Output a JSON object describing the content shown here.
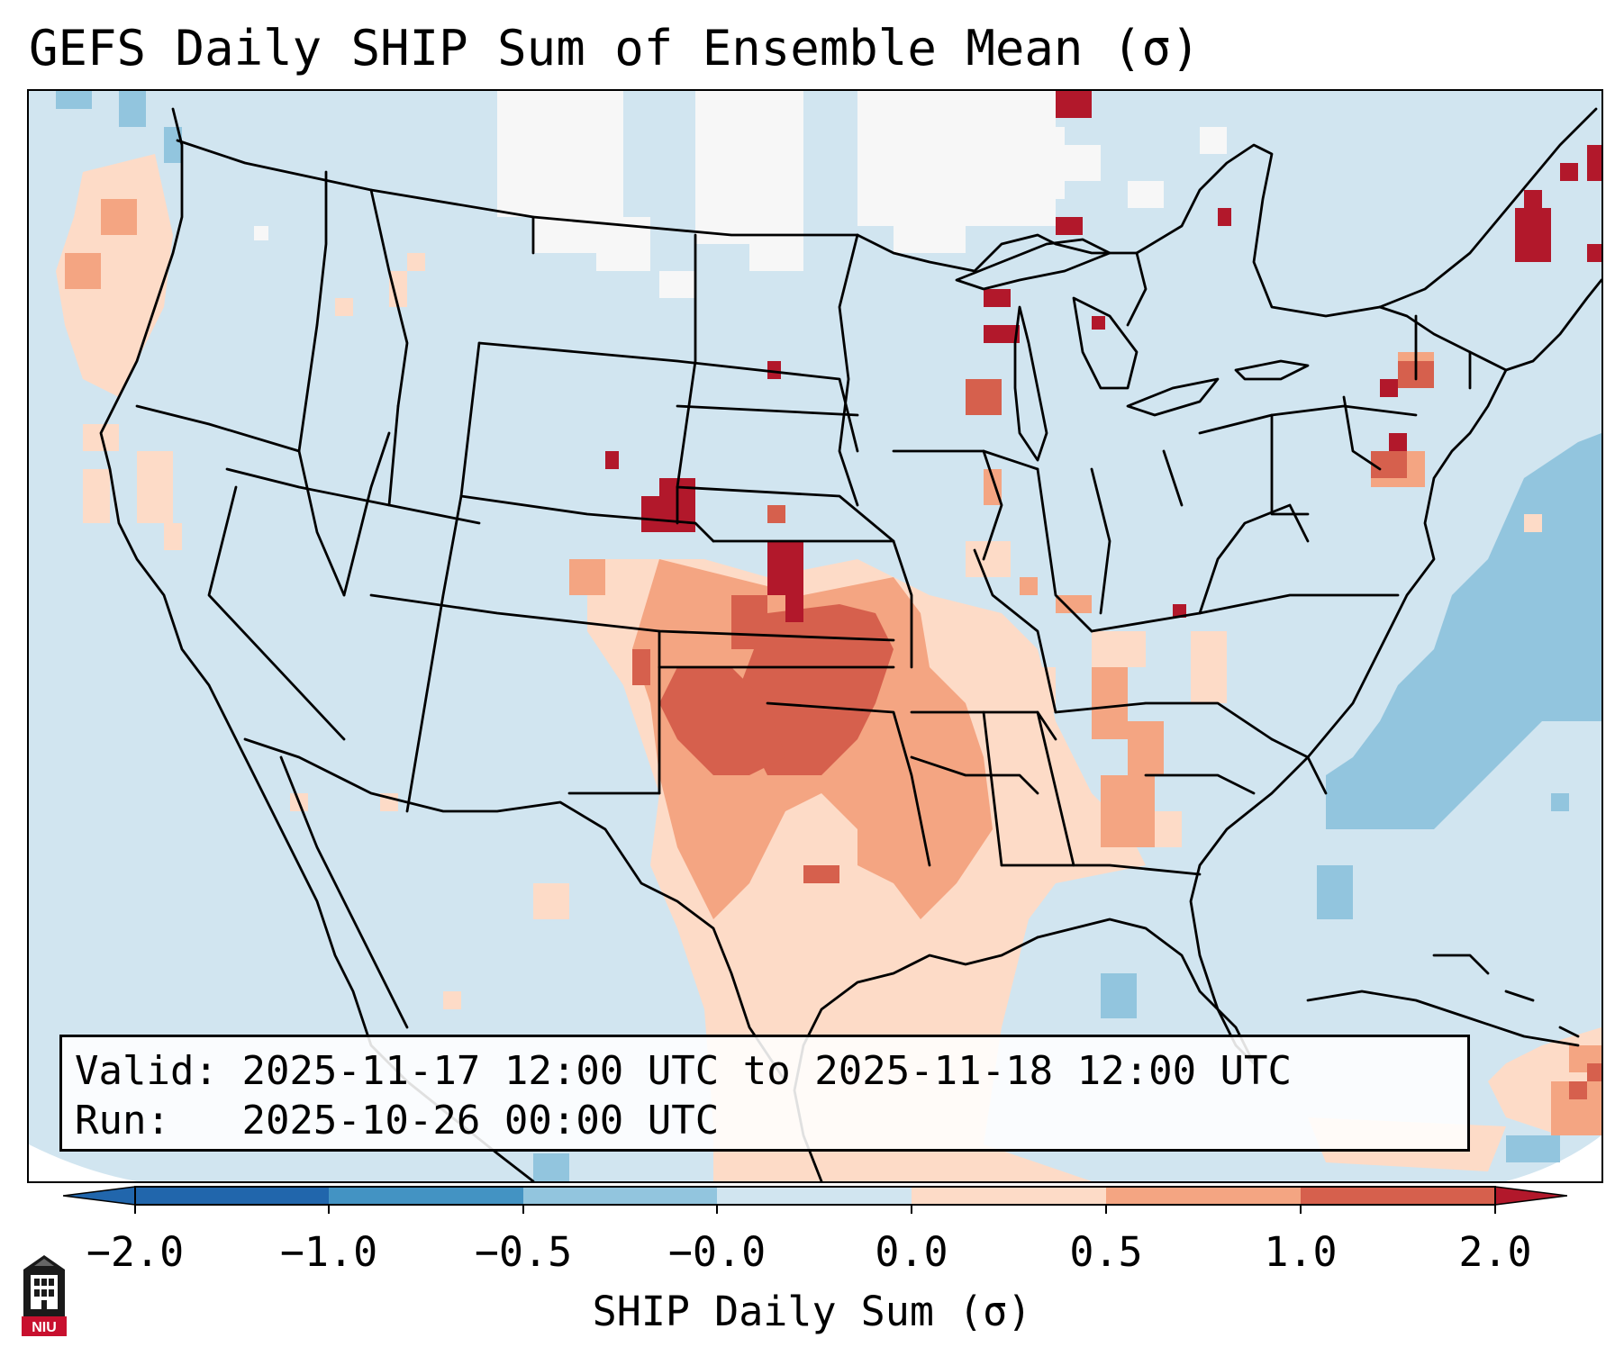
{
  "title": "GEFS Daily SHIP Sum of Ensemble Mean (σ)",
  "info": {
    "valid_label": "Valid:",
    "valid_value": "2025-11-17 12:00 UTC to 2025-11-18 12:00 UTC",
    "run_label": "Run:",
    "run_value": "2025-10-26 00:00 UTC"
  },
  "colorbar": {
    "label": "SHIP Daily Sum (σ)",
    "ticks": [
      "−2.0",
      "−1.0",
      "−0.5",
      "−0.0",
      "0.0",
      "0.5",
      "1.0",
      "2.0"
    ],
    "colors": {
      "under": "#2166ac",
      "bin1": "#4393c3",
      "bin2": "#92c5de",
      "bin3": "#d1e5f0",
      "bin4": "#f7f7f7",
      "bin5": "#fddbc7",
      "bin6": "#f4a582",
      "bin7": "#d6604d",
      "over": "#b2182b"
    }
  },
  "logo": {
    "text": "NIU"
  }
}
